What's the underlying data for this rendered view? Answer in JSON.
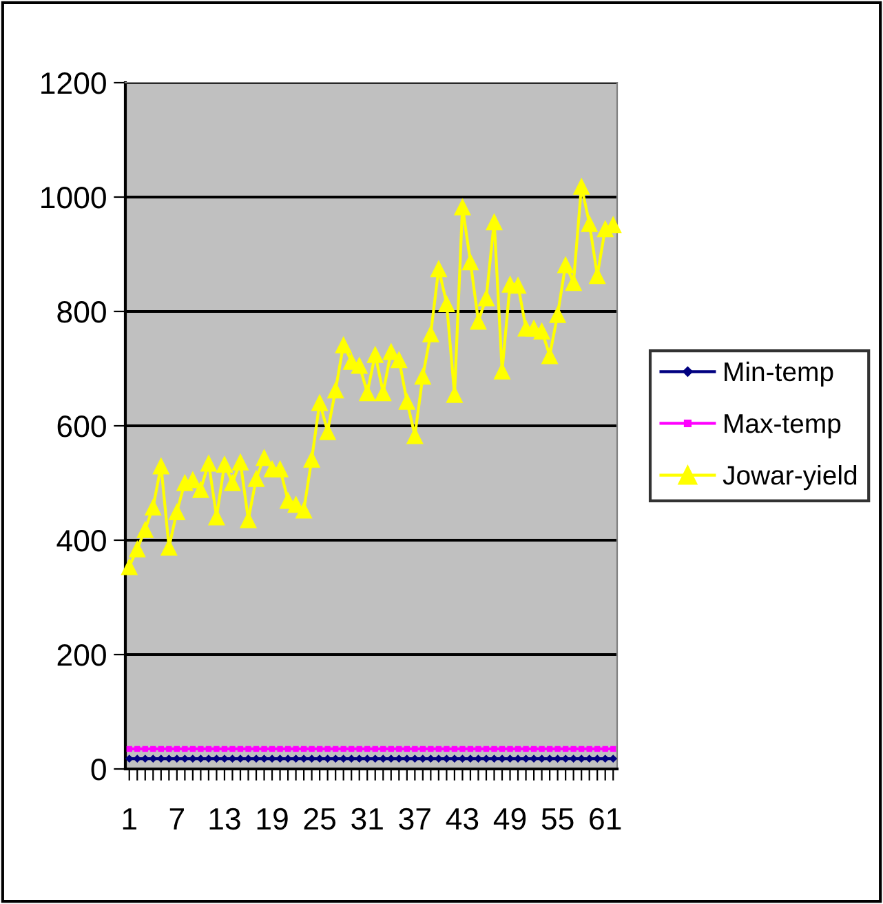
{
  "chart_data": {
    "type": "line",
    "categories": [
      "1",
      null,
      null,
      null,
      null,
      null,
      "7",
      null,
      null,
      null,
      null,
      null,
      "13",
      null,
      null,
      null,
      null,
      null,
      "19",
      null,
      null,
      null,
      null,
      null,
      "25",
      null,
      null,
      null,
      null,
      null,
      "31",
      null,
      null,
      null,
      null,
      null,
      "37",
      null,
      null,
      null,
      null,
      null,
      "43",
      null,
      null,
      null,
      null,
      null,
      "49",
      null,
      null,
      null,
      null,
      null,
      "55",
      null,
      null,
      null,
      null,
      null,
      "61",
      null
    ],
    "series": [
      {
        "name": "Min-temp",
        "color": "#000080",
        "marker": "diamond",
        "values": [
          18,
          18,
          18,
          18,
          18,
          18,
          18,
          18,
          18,
          18,
          18,
          18,
          18,
          18,
          18,
          18,
          18,
          18,
          18,
          18,
          18,
          18,
          18,
          18,
          18,
          18,
          18,
          18,
          18,
          18,
          18,
          18,
          18,
          18,
          18,
          18,
          18,
          18,
          18,
          18,
          18,
          18,
          18,
          18,
          18,
          18,
          18,
          18,
          18,
          18,
          18,
          18,
          18,
          18,
          18,
          18,
          18,
          18,
          18,
          18,
          18,
          18
        ]
      },
      {
        "name": "Max-temp",
        "color": "#ff00ff",
        "marker": "square",
        "values": [
          35,
          35,
          35,
          35,
          35,
          35,
          35,
          35,
          35,
          35,
          35,
          35,
          35,
          35,
          35,
          35,
          35,
          35,
          35,
          35,
          35,
          35,
          35,
          35,
          35,
          35,
          35,
          35,
          35,
          35,
          35,
          35,
          35,
          35,
          35,
          35,
          35,
          35,
          35,
          35,
          35,
          35,
          35,
          35,
          35,
          35,
          35,
          35,
          35,
          35,
          35,
          35,
          35,
          35,
          35,
          35,
          35,
          35,
          35,
          35,
          35,
          35
        ]
      },
      {
        "name": "Jowar-yield",
        "color": "#ffff00",
        "marker": "triangle",
        "values": [
          354,
          385,
          419,
          458,
          530,
          388,
          450,
          501,
          506,
          489,
          535,
          441,
          533,
          501,
          537,
          436,
          508,
          545,
          525,
          525,
          470,
          463,
          453,
          542,
          641,
          590,
          663,
          742,
          713,
          706,
          658,
          725,
          658,
          730,
          716,
          643,
          583,
          687,
          761,
          875,
          814,
          655,
          983,
          887,
          783,
          824,
          957,
          696,
          848,
          846,
          771,
          771,
          766,
          723,
          795,
          882,
          851,
          1019,
          954,
          863,
          945,
          952
        ]
      }
    ],
    "ylim": [
      0,
      1200
    ],
    "yticks": [
      0,
      200,
      400,
      600,
      800,
      1000,
      1200
    ],
    "grid": "y",
    "legend": "right",
    "line_style": "solid"
  }
}
